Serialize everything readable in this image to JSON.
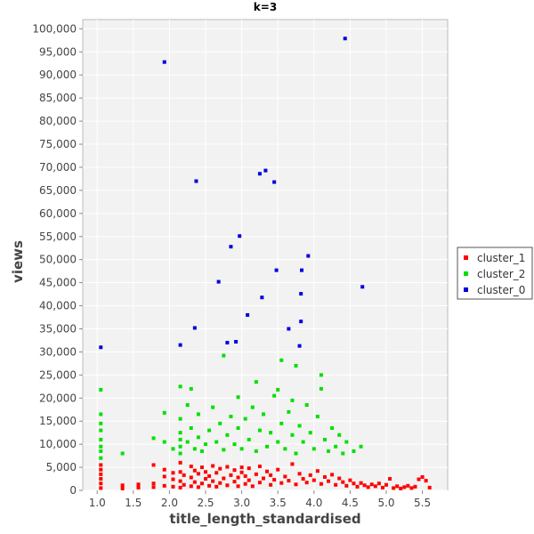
{
  "chart_data": {
    "type": "scatter",
    "title": "k=3",
    "xlabel": "title_length_standardised",
    "ylabel": "views",
    "xlim": [
      0.8,
      5.85
    ],
    "ylim": [
      0,
      102000
    ],
    "x_ticks": [
      1.0,
      1.5,
      2.0,
      2.5,
      3.0,
      3.5,
      4.0,
      4.5,
      5.0,
      5.5
    ],
    "x_tick_labels": [
      "1.0",
      "1.5",
      "2.0",
      "2.5",
      "3.0",
      "3.5",
      "4.0",
      "4.5",
      "5.0",
      "5.5"
    ],
    "y_ticks": [
      0,
      5000,
      10000,
      15000,
      20000,
      25000,
      30000,
      35000,
      40000,
      45000,
      50000,
      55000,
      60000,
      65000,
      70000,
      75000,
      80000,
      85000,
      90000,
      95000,
      100000
    ],
    "y_tick_labels": [
      "0",
      "5,000",
      "10,000",
      "15,000",
      "20,000",
      "25,000",
      "30,000",
      "35,000",
      "40,000",
      "45,000",
      "50,000",
      "55,000",
      "60,000",
      "65,000",
      "70,000",
      "75,000",
      "80,000",
      "85,000",
      "90,000",
      "95,000",
      "100,000"
    ],
    "grid": true,
    "legend_position": "right",
    "series": [
      {
        "name": "cluster_1",
        "color": "#ff0000",
        "points": [
          [
            1.05,
            500
          ],
          [
            1.05,
            1500
          ],
          [
            1.05,
            2500
          ],
          [
            1.05,
            3500
          ],
          [
            1.05,
            4500
          ],
          [
            1.05,
            5500
          ],
          [
            1.35,
            400
          ],
          [
            1.35,
            1100
          ],
          [
            1.57,
            600
          ],
          [
            1.57,
            1300
          ],
          [
            1.78,
            700
          ],
          [
            1.78,
            1500
          ],
          [
            1.78,
            5500
          ],
          [
            1.93,
            1000
          ],
          [
            1.93,
            3000
          ],
          [
            1.93,
            4500
          ],
          [
            2.05,
            800
          ],
          [
            2.05,
            2400
          ],
          [
            2.05,
            3800
          ],
          [
            2.15,
            600
          ],
          [
            2.15,
            2000
          ],
          [
            2.15,
            4000
          ],
          [
            2.15,
            6000
          ],
          [
            2.2,
            1200
          ],
          [
            2.2,
            3300
          ],
          [
            2.3,
            900
          ],
          [
            2.3,
            2800
          ],
          [
            2.3,
            5200
          ],
          [
            2.35,
            1800
          ],
          [
            2.35,
            4300
          ],
          [
            2.4,
            700
          ],
          [
            2.4,
            3600
          ],
          [
            2.45,
            1500
          ],
          [
            2.45,
            5000
          ],
          [
            2.5,
            2500
          ],
          [
            2.5,
            4000
          ],
          [
            2.55,
            1000
          ],
          [
            2.55,
            3100
          ],
          [
            2.6,
            2000
          ],
          [
            2.6,
            5300
          ],
          [
            2.65,
            800
          ],
          [
            2.65,
            3800
          ],
          [
            2.7,
            1600
          ],
          [
            2.7,
            4700
          ],
          [
            2.75,
            2600
          ],
          [
            2.8,
            1100
          ],
          [
            2.8,
            5100
          ],
          [
            2.85,
            3300
          ],
          [
            2.9,
            1900
          ],
          [
            2.9,
            4400
          ],
          [
            2.95,
            900
          ],
          [
            2.95,
            2800
          ],
          [
            3.0,
            3900
          ],
          [
            3.0,
            5000
          ],
          [
            3.05,
            1400
          ],
          [
            3.05,
            3100
          ],
          [
            3.1,
            2200
          ],
          [
            3.1,
            4800
          ],
          [
            3.15,
            900
          ],
          [
            3.2,
            3500
          ],
          [
            3.25,
            1700
          ],
          [
            3.25,
            5200
          ],
          [
            3.3,
            2600
          ],
          [
            3.35,
            4100
          ],
          [
            3.4,
            1200
          ],
          [
            3.4,
            3300
          ],
          [
            3.45,
            2300
          ],
          [
            3.5,
            4500
          ],
          [
            3.55,
            1600
          ],
          [
            3.6,
            3000
          ],
          [
            3.65,
            2100
          ],
          [
            3.7,
            5700
          ],
          [
            3.75,
            1300
          ],
          [
            3.8,
            3600
          ],
          [
            3.85,
            2500
          ],
          [
            3.9,
            1700
          ],
          [
            3.95,
            3300
          ],
          [
            4.0,
            2200
          ],
          [
            4.05,
            4200
          ],
          [
            4.1,
            1400
          ],
          [
            4.15,
            2900
          ],
          [
            4.2,
            2000
          ],
          [
            4.25,
            3400
          ],
          [
            4.3,
            1200
          ],
          [
            4.35,
            2600
          ],
          [
            4.4,
            1800
          ],
          [
            4.45,
            1000
          ],
          [
            4.5,
            2200
          ],
          [
            4.55,
            1500
          ],
          [
            4.6,
            800
          ],
          [
            4.65,
            1600
          ],
          [
            4.7,
            1100
          ],
          [
            4.75,
            700
          ],
          [
            4.8,
            1300
          ],
          [
            4.85,
            900
          ],
          [
            4.9,
            1500
          ],
          [
            4.95,
            600
          ],
          [
            5.0,
            1200
          ],
          [
            5.05,
            2500
          ],
          [
            5.1,
            500
          ],
          [
            5.15,
            900
          ],
          [
            5.2,
            400
          ],
          [
            5.25,
            700
          ],
          [
            5.3,
            1000
          ],
          [
            5.35,
            500
          ],
          [
            5.4,
            800
          ],
          [
            5.45,
            2400
          ],
          [
            5.5,
            2900
          ],
          [
            5.55,
            2100
          ],
          [
            5.6,
            600
          ]
        ]
      },
      {
        "name": "cluster_2",
        "color": "#00e000",
        "points": [
          [
            1.05,
            7000
          ],
          [
            1.05,
            8500
          ],
          [
            1.05,
            9500
          ],
          [
            1.05,
            11000
          ],
          [
            1.05,
            13000
          ],
          [
            1.05,
            14500
          ],
          [
            1.05,
            16500
          ],
          [
            1.05,
            21800
          ],
          [
            1.35,
            8000
          ],
          [
            1.78,
            11300
          ],
          [
            1.93,
            10500
          ],
          [
            1.93,
            16800
          ],
          [
            2.05,
            9000
          ],
          [
            2.15,
            8000
          ],
          [
            2.15,
            9500
          ],
          [
            2.15,
            11000
          ],
          [
            2.15,
            12500
          ],
          [
            2.15,
            15500
          ],
          [
            2.15,
            22500
          ],
          [
            2.25,
            10500
          ],
          [
            2.25,
            18500
          ],
          [
            2.3,
            13500
          ],
          [
            2.3,
            22000
          ],
          [
            2.35,
            9000
          ],
          [
            2.4,
            11500
          ],
          [
            2.4,
            16500
          ],
          [
            2.45,
            8500
          ],
          [
            2.5,
            10000
          ],
          [
            2.55,
            13000
          ],
          [
            2.6,
            18000
          ],
          [
            2.65,
            10500
          ],
          [
            2.7,
            14500
          ],
          [
            2.75,
            8800
          ],
          [
            2.75,
            29200
          ],
          [
            2.8,
            12000
          ],
          [
            2.85,
            16000
          ],
          [
            2.9,
            10000
          ],
          [
            2.95,
            13500
          ],
          [
            2.95,
            20200
          ],
          [
            3.0,
            9000
          ],
          [
            3.05,
            15500
          ],
          [
            3.1,
            11000
          ],
          [
            3.15,
            18000
          ],
          [
            3.2,
            8500
          ],
          [
            3.2,
            23500
          ],
          [
            3.25,
            13000
          ],
          [
            3.3,
            16500
          ],
          [
            3.35,
            9500
          ],
          [
            3.4,
            12500
          ],
          [
            3.45,
            20500
          ],
          [
            3.5,
            10500
          ],
          [
            3.5,
            21800
          ],
          [
            3.55,
            14500
          ],
          [
            3.55,
            28200
          ],
          [
            3.6,
            9000
          ],
          [
            3.65,
            17000
          ],
          [
            3.7,
            12000
          ],
          [
            3.7,
            19500
          ],
          [
            3.75,
            8000
          ],
          [
            3.75,
            27000
          ],
          [
            3.8,
            14000
          ],
          [
            3.85,
            10500
          ],
          [
            3.9,
            18500
          ],
          [
            3.95,
            12500
          ],
          [
            4.0,
            9000
          ],
          [
            4.05,
            16000
          ],
          [
            4.1,
            22000
          ],
          [
            4.1,
            25000
          ],
          [
            4.15,
            11000
          ],
          [
            4.2,
            8500
          ],
          [
            4.25,
            13500
          ],
          [
            4.3,
            9500
          ],
          [
            4.35,
            12000
          ],
          [
            4.4,
            8000
          ],
          [
            4.45,
            10500
          ],
          [
            4.55,
            8500
          ],
          [
            4.65,
            9500
          ]
        ]
      },
      {
        "name": "cluster_0",
        "color": "#0000e0",
        "points": [
          [
            1.05,
            31000
          ],
          [
            1.93,
            92800
          ],
          [
            2.15,
            31500
          ],
          [
            2.35,
            35200
          ],
          [
            2.37,
            67000
          ],
          [
            2.68,
            45200
          ],
          [
            2.8,
            32000
          ],
          [
            2.85,
            52800
          ],
          [
            2.92,
            32200
          ],
          [
            2.97,
            55100
          ],
          [
            3.08,
            38000
          ],
          [
            3.25,
            68600
          ],
          [
            3.28,
            41800
          ],
          [
            3.33,
            69300
          ],
          [
            3.45,
            66800
          ],
          [
            3.48,
            47700
          ],
          [
            3.65,
            35000
          ],
          [
            3.8,
            31300
          ],
          [
            3.82,
            36600
          ],
          [
            3.82,
            42600
          ],
          [
            3.83,
            47700
          ],
          [
            3.92,
            50800
          ],
          [
            4.43,
            97900
          ],
          [
            4.67,
            44100
          ]
        ]
      }
    ]
  }
}
